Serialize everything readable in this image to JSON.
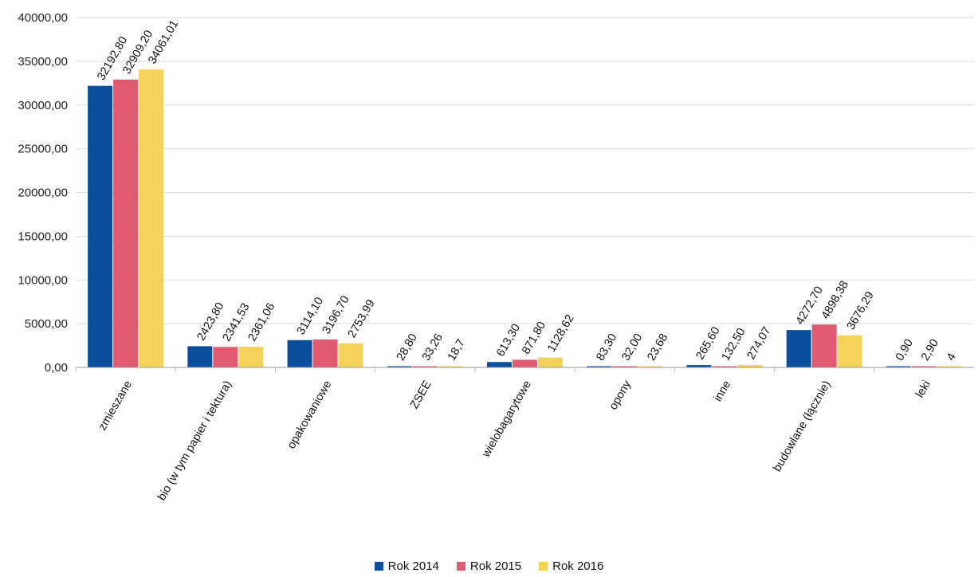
{
  "chart_data": {
    "type": "bar",
    "title": "",
    "xlabel": "",
    "ylabel": "",
    "ylim": [
      0,
      40000
    ],
    "yticks": [
      "0,00",
      "5000,00",
      "10000,00",
      "15000,00",
      "20000,00",
      "25000,00",
      "30000,00",
      "35000,00",
      "40000,00"
    ],
    "grid": true,
    "legend_position": "bottom",
    "categories": [
      "zmieszane",
      "bio (w tym papier i tektura)",
      "opakowaniowe",
      "ZSEE",
      "wielobagarytowe",
      "opony",
      "inne",
      "budowlane (łącznie)",
      "leki"
    ],
    "series": [
      {
        "name": "Rok 2014",
        "color": "#0a4f9c",
        "values": [
          32192.8,
          2423.8,
          3114.1,
          28.8,
          613.3,
          83.3,
          265.6,
          4272.7,
          0.9
        ],
        "labels": [
          "32192,80",
          "2423,80",
          "3114,10",
          "28,80",
          "613,30",
          "83,30",
          "265,60",
          "4272,70",
          "0,90"
        ]
      },
      {
        "name": "Rok 2015",
        "color": "#e05a72",
        "values": [
          32909.2,
          2341.53,
          3196.7,
          33.26,
          871.8,
          32.0,
          132.5,
          4898.38,
          2.9
        ],
        "labels": [
          "32909,20",
          "2341,53",
          "3196,70",
          "33,26",
          "871,80",
          "32,00",
          "132,50",
          "4898,38",
          "2,90"
        ]
      },
      {
        "name": "Rok 2016",
        "color": "#f5d35a",
        "values": [
          34061.01,
          2361.06,
          2753.99,
          18.7,
          1128.62,
          23.68,
          274.07,
          3676.29,
          4
        ],
        "labels": [
          "34061,01",
          "2361,06",
          "2753,99",
          "18,7",
          "1128,62",
          "23,68",
          "274,07",
          "3676,29",
          "4"
        ]
      }
    ]
  }
}
